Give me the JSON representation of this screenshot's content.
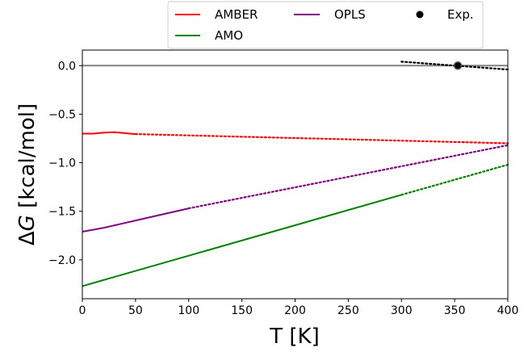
{
  "chart_data": {
    "type": "line",
    "title": "",
    "xlabel": "T [K]",
    "ylabel_prefix": "Δ",
    "ylabel_symbol": "G",
    "ylabel_suffix": " [kcal/mol]",
    "xlim": [
      0,
      400
    ],
    "ylim": [
      -2.4,
      0.16
    ],
    "xticks": [
      0,
      50,
      100,
      150,
      200,
      250,
      300,
      350,
      400
    ],
    "yticks": [
      0.0,
      -0.5,
      -1.0,
      -1.5,
      -2.0
    ],
    "ytick_labels": [
      "0.0",
      "−0.5",
      "−1.0",
      "−1.5",
      "−2.0"
    ],
    "grid": false,
    "legend_location": "top-center, outside above plot",
    "reference_line": {
      "y": 0.0,
      "color": "#808080"
    },
    "series": [
      {
        "name": "AMBER",
        "color": "#ff0000",
        "solid": [
          [
            0,
            -0.7
          ],
          [
            10,
            -0.7
          ],
          [
            20,
            -0.69
          ],
          [
            30,
            -0.685
          ],
          [
            40,
            -0.695
          ],
          [
            50,
            -0.705
          ]
        ],
        "dotted": [
          [
            50,
            -0.705
          ],
          [
            400,
            -0.8
          ]
        ]
      },
      {
        "name": "AMO",
        "color": "#008000",
        "solid": [
          [
            0,
            -2.27
          ],
          [
            300,
            -1.33
          ]
        ],
        "dotted": [
          [
            300,
            -1.33
          ],
          [
            400,
            -1.02
          ]
        ]
      },
      {
        "name": "OPLS",
        "color": "#800080",
        "solid": [
          [
            0,
            -1.71
          ],
          [
            20,
            -1.67
          ],
          [
            40,
            -1.62
          ],
          [
            60,
            -1.57
          ],
          [
            80,
            -1.52
          ],
          [
            100,
            -1.47
          ]
        ],
        "dotted": [
          [
            100,
            -1.47
          ],
          [
            400,
            -0.82
          ]
        ]
      },
      {
        "name": "Exp.",
        "color": "#000000",
        "marker": "circle",
        "point": [
          353,
          0.0
        ],
        "dotted": [
          [
            300,
            0.04
          ],
          [
            400,
            -0.04
          ]
        ]
      }
    ]
  }
}
